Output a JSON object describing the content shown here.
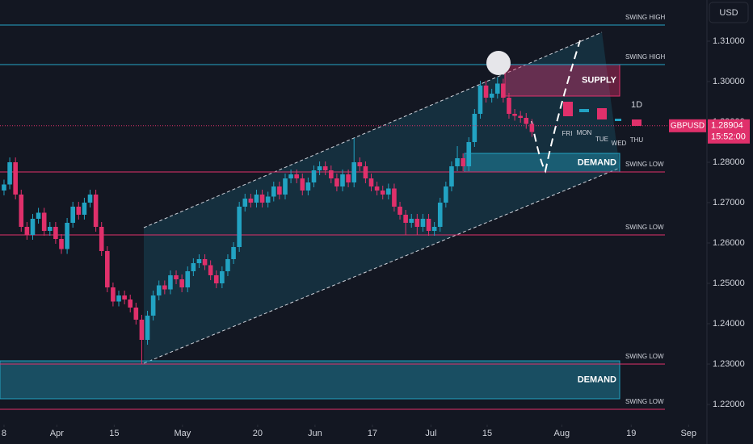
{
  "chart_data": {
    "type": "candlestick",
    "currency": "USD",
    "interval": "1D",
    "up_color": "#22a3c3",
    "down_color": "#e0306b",
    "ylim": [
      1.2162,
      1.3202
    ],
    "yticks": [
      {
        "value": 1.31,
        "label": "1.31000"
      },
      {
        "value": 1.3,
        "label": "1.30000"
      },
      {
        "value": 1.29,
        "label": "1.29000"
      },
      {
        "value": 1.28,
        "label": "1.28000"
      },
      {
        "value": 1.27,
        "label": "1.27000"
      },
      {
        "value": 1.26,
        "label": "1.26000"
      },
      {
        "value": 1.25,
        "label": "1.25000"
      },
      {
        "value": 1.24,
        "label": "1.24000"
      },
      {
        "value": 1.23,
        "label": "1.23000"
      },
      {
        "value": 1.22,
        "label": "1.22000"
      }
    ],
    "xlim": [
      -0.7,
      122.5
    ],
    "xticks": [
      {
        "value": 0,
        "label": "8"
      },
      {
        "value": 9.2,
        "label": "Apr"
      },
      {
        "value": 19.2,
        "label": "15"
      },
      {
        "value": 31.1,
        "label": "May"
      },
      {
        "value": 44.2,
        "label": "20"
      },
      {
        "value": 54.2,
        "label": "Jun"
      },
      {
        "value": 64.2,
        "label": "17"
      },
      {
        "value": 74.4,
        "label": "Jul"
      },
      {
        "value": 84.2,
        "label": "15"
      },
      {
        "value": 97.2,
        "label": "Aug"
      },
      {
        "value": 109.3,
        "label": "19"
      },
      {
        "value": 119.3,
        "label": "Sep"
      }
    ],
    "ohlc": [
      [
        1.273,
        1.2757,
        1.2718,
        1.2745
      ],
      [
        1.2745,
        1.2812,
        1.2733,
        1.28
      ],
      [
        1.28,
        1.2812,
        1.2708,
        1.272
      ],
      [
        1.272,
        1.2732,
        1.2628,
        1.264
      ],
      [
        1.264,
        1.2652,
        1.2608,
        1.262
      ],
      [
        1.262,
        1.2672,
        1.2608,
        1.266
      ],
      [
        1.266,
        1.2687,
        1.2648,
        1.2675
      ],
      [
        1.2675,
        1.2687,
        1.2618,
        1.263
      ],
      [
        1.263,
        1.2652,
        1.2618,
        1.264
      ],
      [
        1.264,
        1.2652,
        1.2598,
        1.261
      ],
      [
        1.261,
        1.2622,
        1.2573,
        1.2585
      ],
      [
        1.2585,
        1.2662,
        1.2573,
        1.265
      ],
      [
        1.265,
        1.2702,
        1.2638,
        1.269
      ],
      [
        1.269,
        1.2702,
        1.2658,
        1.267
      ],
      [
        1.267,
        1.2712,
        1.2658,
        1.27
      ],
      [
        1.27,
        1.2732,
        1.2688,
        1.272
      ],
      [
        1.272,
        1.2732,
        1.2628,
        1.264
      ],
      [
        1.264,
        1.2652,
        1.2568,
        1.258
      ],
      [
        1.258,
        1.2592,
        1.2478,
        1.249
      ],
      [
        1.249,
        1.2502,
        1.2443,
        1.2455
      ],
      [
        1.2455,
        1.2482,
        1.2443,
        1.247
      ],
      [
        1.247,
        1.2482,
        1.2448,
        1.246
      ],
      [
        1.246,
        1.2472,
        1.2428,
        1.244
      ],
      [
        1.244,
        1.2452,
        1.2398,
        1.241
      ],
      [
        1.241,
        1.2422,
        1.23,
        1.236
      ],
      [
        1.236,
        1.2432,
        1.2348,
        1.242
      ],
      [
        1.242,
        1.2482,
        1.2408,
        1.247
      ],
      [
        1.247,
        1.2507,
        1.2458,
        1.2495
      ],
      [
        1.2495,
        1.2507,
        1.2473,
        1.2485
      ],
      [
        1.2485,
        1.2532,
        1.2473,
        1.252
      ],
      [
        1.252,
        1.2532,
        1.2498,
        1.251
      ],
      [
        1.251,
        1.2522,
        1.2478,
        1.249
      ],
      [
        1.249,
        1.2542,
        1.2478,
        1.253
      ],
      [
        1.253,
        1.2562,
        1.2518,
        1.255
      ],
      [
        1.255,
        1.2572,
        1.2538,
        1.256
      ],
      [
        1.256,
        1.2572,
        1.2533,
        1.2545
      ],
      [
        1.2545,
        1.2557,
        1.2508,
        1.252
      ],
      [
        1.252,
        1.2532,
        1.2488,
        1.25
      ],
      [
        1.25,
        1.2542,
        1.2488,
        1.253
      ],
      [
        1.253,
        1.2572,
        1.2518,
        1.256
      ],
      [
        1.256,
        1.2602,
        1.2548,
        1.259
      ],
      [
        1.259,
        1.2702,
        1.2578,
        1.269
      ],
      [
        1.269,
        1.2722,
        1.2678,
        1.271
      ],
      [
        1.271,
        1.2722,
        1.2688,
        1.27
      ],
      [
        1.27,
        1.2732,
        1.2688,
        1.272
      ],
      [
        1.272,
        1.2732,
        1.2688,
        1.27
      ],
      [
        1.27,
        1.2727,
        1.2688,
        1.2715
      ],
      [
        1.2715,
        1.2752,
        1.2703,
        1.274
      ],
      [
        1.274,
        1.2752,
        1.2708,
        1.272
      ],
      [
        1.272,
        1.2772,
        1.2708,
        1.276
      ],
      [
        1.276,
        1.2782,
        1.2748,
        1.277
      ],
      [
        1.277,
        1.2782,
        1.2748,
        1.276
      ],
      [
        1.276,
        1.2772,
        1.2718,
        1.273
      ],
      [
        1.273,
        1.2762,
        1.2718,
        1.275
      ],
      [
        1.275,
        1.2792,
        1.2738,
        1.278
      ],
      [
        1.278,
        1.2802,
        1.2768,
        1.279
      ],
      [
        1.279,
        1.2802,
        1.2768,
        1.278
      ],
      [
        1.278,
        1.2792,
        1.2748,
        1.276
      ],
      [
        1.276,
        1.2772,
        1.2728,
        1.274
      ],
      [
        1.274,
        1.2782,
        1.2728,
        1.277
      ],
      [
        1.277,
        1.2782,
        1.2738,
        1.275
      ],
      [
        1.275,
        1.286,
        1.2738,
        1.28
      ],
      [
        1.28,
        1.2812,
        1.2778,
        1.279
      ],
      [
        1.279,
        1.2802,
        1.2748,
        1.276
      ],
      [
        1.276,
        1.2772,
        1.2728,
        1.274
      ],
      [
        1.274,
        1.2752,
        1.2718,
        1.273
      ],
      [
        1.273,
        1.2742,
        1.2708,
        1.272
      ],
      [
        1.272,
        1.2747,
        1.2708,
        1.2735
      ],
      [
        1.2735,
        1.2747,
        1.2678,
        1.269
      ],
      [
        1.269,
        1.2702,
        1.2658,
        1.267
      ],
      [
        1.267,
        1.2682,
        1.262,
        1.265
      ],
      [
        1.265,
        1.2672,
        1.2638,
        1.266
      ],
      [
        1.266,
        1.2672,
        1.262,
        1.264
      ],
      [
        1.264,
        1.2672,
        1.2628,
        1.266
      ],
      [
        1.266,
        1.2672,
        1.2618,
        1.263
      ],
      [
        1.263,
        1.2652,
        1.2618,
        1.264
      ],
      [
        1.264,
        1.2712,
        1.2628,
        1.27
      ],
      [
        1.27,
        1.2752,
        1.2688,
        1.274
      ],
      [
        1.274,
        1.2802,
        1.2728,
        1.279
      ],
      [
        1.279,
        1.284,
        1.2778,
        1.281
      ],
      [
        1.281,
        1.2822,
        1.2778,
        1.279
      ],
      [
        1.279,
        1.2862,
        1.2778,
        1.285
      ],
      [
        1.285,
        1.2932,
        1.2838,
        1.292
      ],
      [
        1.292,
        1.3002,
        1.2908,
        1.299
      ],
      [
        1.299,
        1.3002,
        1.2948,
        1.296
      ],
      [
        1.296,
        1.2982,
        1.2948,
        1.297
      ],
      [
        1.297,
        1.301,
        1.2958,
        1.2995
      ],
      [
        1.2995,
        1.3007,
        1.2948,
        1.296
      ],
      [
        1.296,
        1.2972,
        1.2908,
        1.292
      ],
      [
        1.292,
        1.2932,
        1.2903,
        1.2915
      ],
      [
        1.2915,
        1.2927,
        1.2898,
        1.291
      ],
      [
        1.291,
        1.2922,
        1.2883,
        1.2895
      ],
      [
        1.2895,
        1.2907,
        1.2863,
        1.2875
      ]
    ],
    "levels": [
      {
        "label": "SWING HIGH",
        "value": 1.314,
        "color": "#26a6c8"
      },
      {
        "label": "SWING HIGH",
        "value": 1.3042,
        "color": "#26a6c8"
      },
      {
        "label": "SWING LOW",
        "value": 1.2776,
        "color": "#e0306b"
      },
      {
        "label": "SWING LOW",
        "value": 1.262,
        "color": "#e0306b"
      },
      {
        "label": "SWING LOW",
        "value": 1.23,
        "color": "#e0306b"
      },
      {
        "label": "SWING LOW",
        "value": 1.2188,
        "color": "#e0306b"
      }
    ],
    "zones": [
      {
        "label": "SUPPLY",
        "top": 1.3042,
        "bottom": 1.2964,
        "color": "#e0306b"
      },
      {
        "label": "DEMAND",
        "top": 1.2822,
        "bottom": 1.2776,
        "color": "#22a3c3"
      },
      {
        "label": "DEMAND",
        "top": 1.2308,
        "bottom": 1.2214,
        "color": "#22a3c3"
      }
    ],
    "projection_days": [
      "FRI",
      "MON",
      "TUE",
      "WED",
      "THU"
    ],
    "price": {
      "symbol": "GBPUSD",
      "value": 1.28904,
      "countdown": "15:52:00"
    }
  }
}
